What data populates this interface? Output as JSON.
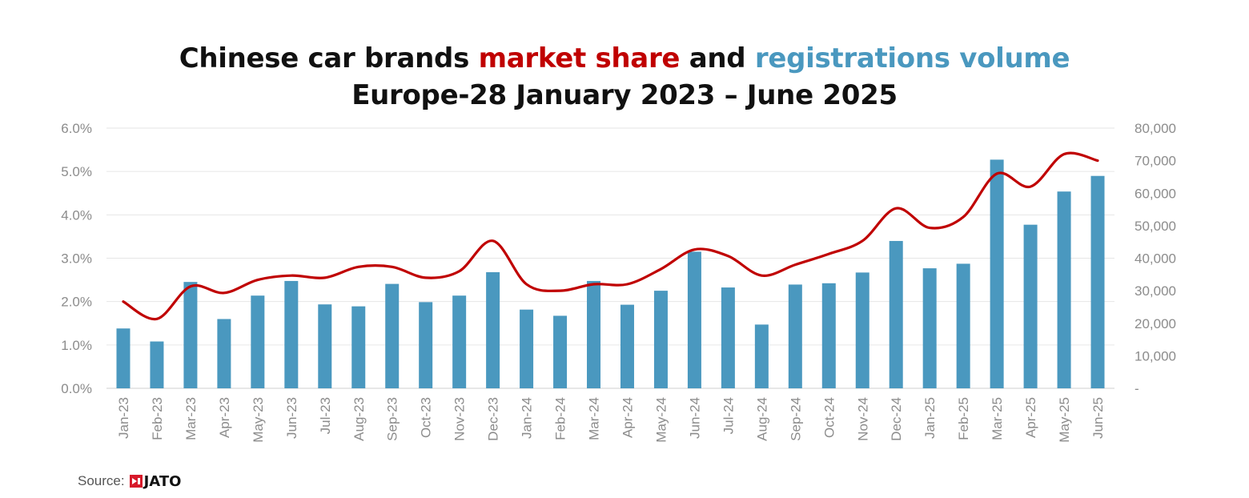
{
  "title": {
    "line1_part1": "Chinese car brands ",
    "line1_highlight1": "market share",
    "line1_part2": " and ",
    "line1_highlight2": "registrations volume",
    "line2": "Europe-28 January 2023 – June 2025"
  },
  "colors": {
    "bar": "#4a98bf",
    "line": "#c00000",
    "grid": "#e6e6e6",
    "axis_text": "#8c8c8c",
    "baseline": "#cfcfcf"
  },
  "chart_data": {
    "type": "bar",
    "categories": [
      "Jan-23",
      "Feb-23",
      "Mar-23",
      "Apr-23",
      "May-23",
      "Jun-23",
      "Jul-23",
      "Aug-23",
      "Sep-23",
      "Oct-23",
      "Nov-23",
      "Dec-23",
      "Jan-24",
      "Feb-24",
      "Mar-24",
      "Apr-24",
      "May-24",
      "Jun-24",
      "Jul-24",
      "Aug-24",
      "Sep-24",
      "Oct-24",
      "Nov-24",
      "Dec-24",
      "Jan-25",
      "Feb-25",
      "Mar-25",
      "Apr-25",
      "May-25",
      "Jun-25"
    ],
    "series": [
      {
        "name": "registrations volume",
        "type": "bar",
        "axis": "right",
        "values": [
          18400,
          14400,
          32700,
          21300,
          28500,
          33000,
          25800,
          25200,
          32100,
          26500,
          28500,
          35700,
          24200,
          22300,
          33000,
          25700,
          30000,
          42000,
          31000,
          19600,
          31900,
          32300,
          35600,
          45300,
          36900,
          38300,
          70300,
          50300,
          60500,
          65300
        ]
      },
      {
        "name": "market share",
        "type": "line",
        "axis": "left",
        "values": [
          2.0,
          1.6,
          2.35,
          2.2,
          2.5,
          2.6,
          2.55,
          2.8,
          2.8,
          2.55,
          2.7,
          3.4,
          2.4,
          2.25,
          2.4,
          2.4,
          2.75,
          3.2,
          3.05,
          2.6,
          2.85,
          3.1,
          3.4,
          4.15,
          3.7,
          3.95,
          4.95,
          4.65,
          5.4,
          5.25
        ]
      }
    ],
    "left_axis": {
      "ylim": [
        0,
        6
      ],
      "ticks": [
        "0.0%",
        "1.0%",
        "2.0%",
        "3.0%",
        "4.0%",
        "5.0%",
        "6.0%"
      ]
    },
    "right_axis": {
      "ylim": [
        0,
        80000
      ],
      "ticks": [
        "-",
        "10,000",
        "20,000",
        "30,000",
        "40,000",
        "50,000",
        "60,000",
        "70,000",
        "80,000"
      ]
    }
  },
  "source": {
    "label": "Source:",
    "logo_text": "JATO"
  }
}
